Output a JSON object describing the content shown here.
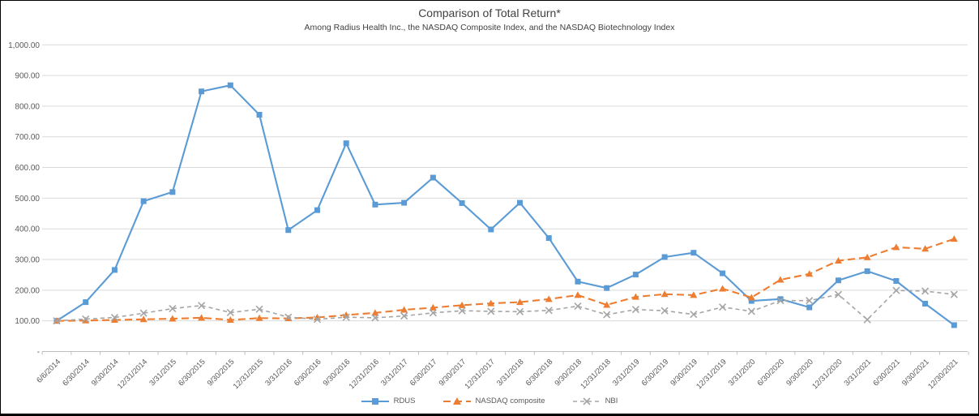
{
  "chart_data": {
    "type": "line",
    "title": "Comparison of Total Return*",
    "subtitle": "Among Radius Health Inc., the NASDAQ Composite Index, and the NASDAQ Biotechnology Index",
    "categories": [
      "6/6/2014",
      "6/30/2014",
      "9/30/2014",
      "12/31/2014",
      "3/31/2015",
      "6/30/2015",
      "9/30/2015",
      "12/31/2015",
      "3/31/2016",
      "6/30/2016",
      "9/30/2016",
      "12/31/2016",
      "3/31/2017",
      "6/30/2017",
      "9/30/2017",
      "12/31/2017",
      "3/31/2018",
      "6/30/2018",
      "9/30/2018",
      "12/31/2018",
      "3/31/2019",
      "6/30/2019",
      "9/30/2019",
      "12/31/2019",
      "3/31/2020",
      "6/30/2020",
      "9/30/2020",
      "12/31/2020",
      "3/31/2021",
      "6/30/2021",
      "9/30/2021",
      "12/30/2021"
    ],
    "series": [
      {
        "name": "RDUS",
        "color": "#5B9BD5",
        "marker": "square",
        "dash": "solid",
        "values": [
          100,
          161,
          266,
          490,
          520,
          848,
          868,
          772,
          396,
          461,
          679,
          479,
          485,
          567,
          484,
          398,
          485,
          370,
          228,
          207,
          251,
          308,
          322,
          255,
          165,
          171,
          144,
          232,
          262,
          230,
          156,
          86
        ]
      },
      {
        "name": "NASDAQ composite",
        "color": "#ED7D31",
        "marker": "triangle",
        "dash": "dashed",
        "values": [
          100,
          101,
          103,
          105,
          107,
          110,
          103,
          109,
          108,
          111,
          119,
          126,
          136,
          143,
          151,
          157,
          161,
          171,
          184,
          152,
          178,
          187,
          184,
          205,
          176,
          234,
          253,
          296,
          307,
          340,
          335,
          367
        ]
      },
      {
        "name": "NBI",
        "color": "#A5A5A5",
        "marker": "x",
        "dash": "dashed",
        "values": [
          100,
          106,
          111,
          125,
          140,
          150,
          127,
          138,
          112,
          105,
          112,
          110,
          116,
          126,
          133,
          131,
          130,
          134,
          148,
          120,
          137,
          133,
          121,
          145,
          131,
          166,
          166,
          186,
          104,
          199,
          197,
          186
        ]
      }
    ],
    "ylim": [
      0,
      1000
    ],
    "ytick_step": 100,
    "ytick_labels": [
      "-",
      "100.00",
      "200.00",
      "300.00",
      "400.00",
      "500.00",
      "600.00",
      "700.00",
      "800.00",
      "900.00",
      "1,000.00"
    ],
    "grid": true,
    "legend_position": "bottom",
    "gridline_color": "#D9D9D9",
    "axis_text_color": "#595959"
  }
}
